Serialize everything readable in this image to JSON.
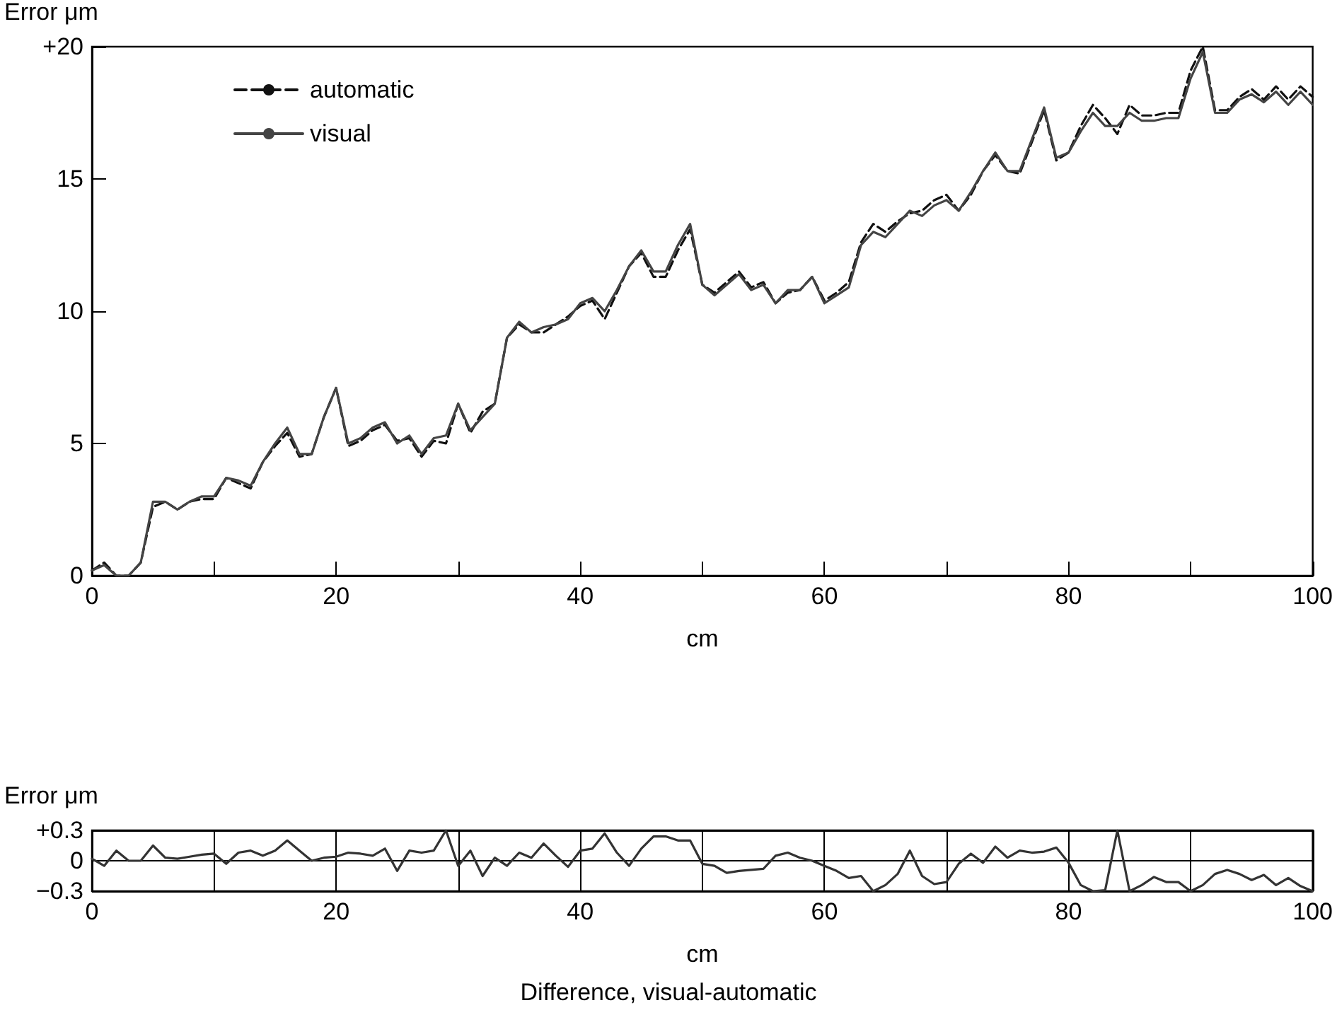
{
  "chart_data": [
    {
      "type": "line",
      "ylabel": "Error μm",
      "xlabel": "cm",
      "xlim": [
        0,
        100
      ],
      "ylim": [
        0,
        20
      ],
      "xticks": [
        0,
        {
          "value": 10,
          "label": null
        },
        20,
        {
          "value": 30,
          "label": null
        },
        40,
        {
          "value": 50,
          "label": null
        },
        60,
        {
          "value": 70,
          "label": null
        },
        80,
        {
          "value": 90,
          "label": null
        },
        100
      ],
      "yticks": [
        0,
        5,
        10,
        15,
        {
          "value": 20,
          "label": "+20"
        }
      ],
      "grid": false,
      "legend": "top left",
      "marker": "none",
      "x": [
        0,
        1,
        2,
        3,
        4,
        5,
        6,
        7,
        8,
        9,
        10,
        11,
        12,
        13,
        14,
        15,
        16,
        17,
        18,
        19,
        20,
        21,
        22,
        23,
        24,
        25,
        26,
        27,
        28,
        29,
        30,
        31,
        32,
        33,
        34,
        35,
        36,
        37,
        38,
        39,
        40,
        41,
        42,
        43,
        44,
        45,
        46,
        47,
        48,
        49,
        50,
        51,
        52,
        53,
        54,
        55,
        56,
        57,
        58,
        59,
        60,
        61,
        62,
        63,
        64,
        65,
        66,
        67,
        68,
        69,
        70,
        71,
        72,
        73,
        74,
        75,
        76,
        77,
        78,
        79,
        80,
        81,
        82,
        83,
        84,
        85,
        86,
        87,
        88,
        89,
        90,
        91,
        92,
        93,
        94,
        95,
        96,
        97,
        98,
        99,
        100
      ],
      "series": [
        {
          "name": "automatic",
          "color": "#111111",
          "line_style": "dashed",
          "values": [
            0.2,
            0.5,
            0,
            0,
            0.5,
            2.6,
            2.8,
            2.5,
            2.8,
            2.9,
            2.9,
            3.7,
            3.5,
            3.3,
            4.3,
            4.9,
            5.4,
            4.5,
            4.6,
            6.0,
            7.1,
            4.9,
            5.1,
            5.5,
            5.7,
            5.1,
            5.2,
            4.5,
            5.1,
            5.0,
            6.5,
            5.4,
            6.2,
            6.5,
            9.0,
            9.5,
            9.2,
            9.2,
            9.5,
            9.8,
            10.2,
            10.4,
            9.7,
            10.7,
            11.7,
            12.2,
            11.3,
            11.3,
            12.3,
            13.1,
            11.0,
            10.7,
            11.1,
            11.5,
            10.9,
            11.1,
            10.3,
            10.7,
            10.8,
            11.3,
            10.4,
            10.7,
            11.1,
            12.6,
            13.3,
            13.0,
            13.4,
            13.7,
            13.8,
            14.2,
            14.4,
            13.8,
            14.4,
            15.3,
            15.9,
            15.3,
            15.2,
            16.4,
            17.6,
            15.7,
            16.0,
            17.0,
            17.8,
            17.3,
            16.7,
            17.8,
            17.4,
            17.4,
            17.5,
            17.5,
            19.1,
            20.0,
            17.6,
            17.6,
            18.1,
            18.4,
            18.0,
            18.5,
            18.0,
            18.5,
            18.1
          ]
        },
        {
          "name": "visual",
          "color": "#444444",
          "line_style": "solid",
          "values": [
            0.2,
            0.4,
            0,
            0,
            0.5,
            2.8,
            2.8,
            2.5,
            2.8,
            3.0,
            3.0,
            3.7,
            3.6,
            3.4,
            4.3,
            5.0,
            5.6,
            4.6,
            4.6,
            6.0,
            7.1,
            5.0,
            5.2,
            5.6,
            5.8,
            5.0,
            5.3,
            4.6,
            5.2,
            5.3,
            6.5,
            5.5,
            6.0,
            6.5,
            9.0,
            9.6,
            9.2,
            9.4,
            9.5,
            9.7,
            10.3,
            10.5,
            10.0,
            10.8,
            11.7,
            12.3,
            11.5,
            11.5,
            12.5,
            13.3,
            11.0,
            10.6,
            11.0,
            11.4,
            10.8,
            11.0,
            10.3,
            10.8,
            10.8,
            11.3,
            10.3,
            10.6,
            10.9,
            12.5,
            13.0,
            12.8,
            13.3,
            13.8,
            13.6,
            14.0,
            14.2,
            13.8,
            14.5,
            15.3,
            16.0,
            15.3,
            15.3,
            16.5,
            17.7,
            15.8,
            16.0,
            16.8,
            17.5,
            17.0,
            17.0,
            17.5,
            17.2,
            17.2,
            17.3,
            17.3,
            18.8,
            19.8,
            17.5,
            17.5,
            18.0,
            18.2,
            17.9,
            18.3,
            17.8,
            18.3,
            17.8
          ]
        }
      ]
    },
    {
      "type": "line",
      "ylabel": "Error μm",
      "xlabel": "cm",
      "xlim": [
        0,
        100
      ],
      "ylim": [
        -0.3,
        0.3
      ],
      "xticks": [
        0,
        {
          "value": 10,
          "label": null
        },
        20,
        {
          "value": 30,
          "label": null
        },
        40,
        {
          "value": 50,
          "label": null
        },
        60,
        {
          "value": 70,
          "label": null
        },
        80,
        {
          "value": 90,
          "label": null
        },
        100
      ],
      "yticks": [
        {
          "value": -0.3,
          "label": "−0.3"
        },
        0,
        {
          "value": 0.3,
          "label": "+0.3"
        }
      ],
      "grid": true,
      "legend": false,
      "marker": "none",
      "line_style": "solid",
      "annotations": [
        "Difference, visual-automatic"
      ],
      "x": [
        0,
        1,
        2,
        3,
        4,
        5,
        6,
        7,
        8,
        9,
        10,
        11,
        12,
        13,
        14,
        15,
        16,
        17,
        18,
        19,
        20,
        21,
        22,
        23,
        24,
        25,
        26,
        27,
        28,
        29,
        30,
        31,
        32,
        33,
        34,
        35,
        36,
        37,
        38,
        39,
        40,
        41,
        42,
        43,
        44,
        45,
        46,
        47,
        48,
        49,
        50,
        51,
        52,
        53,
        54,
        55,
        56,
        57,
        58,
        59,
        60,
        61,
        62,
        63,
        64,
        65,
        66,
        67,
        68,
        69,
        70,
        71,
        72,
        73,
        74,
        75,
        76,
        77,
        78,
        79,
        80,
        81,
        82,
        83,
        84,
        85,
        86,
        87,
        88,
        89,
        90,
        91,
        92,
        93,
        94,
        95,
        96,
        97,
        98,
        99,
        100
      ],
      "series": [
        {
          "color": "#333333",
          "values": [
            0.02,
            -0.05,
            0.1,
            0,
            0,
            0.15,
            0.03,
            0.02,
            0.04,
            0.06,
            0.07,
            -0.03,
            0.08,
            0.1,
            0.05,
            0.1,
            0.2,
            0.1,
            0,
            0.03,
            0.04,
            0.08,
            0.07,
            0.05,
            0.12,
            -0.1,
            0.1,
            0.08,
            0.1,
            0.3,
            -0.05,
            0.1,
            -0.15,
            0.03,
            -0.05,
            0.08,
            0.03,
            0.17,
            0.05,
            -0.06,
            0.1,
            0.12,
            0.27,
            0.08,
            -0.05,
            0.12,
            0.24,
            0.24,
            0.2,
            0.2,
            -0.03,
            -0.05,
            -0.12,
            -0.1,
            -0.09,
            -0.08,
            0.05,
            0.08,
            0.03,
            0,
            -0.05,
            -0.1,
            -0.17,
            -0.15,
            -0.3,
            -0.24,
            -0.13,
            0.1,
            -0.15,
            -0.23,
            -0.21,
            -0.03,
            0.07,
            -0.02,
            0.14,
            0.03,
            0.1,
            0.08,
            0.09,
            0.13,
            -0.02,
            -0.24,
            -0.3,
            -0.29,
            0.3,
            -0.3,
            -0.24,
            -0.16,
            -0.21,
            -0.21,
            -0.3,
            -0.24,
            -0.13,
            -0.09,
            -0.13,
            -0.19,
            -0.14,
            -0.24,
            -0.17,
            -0.25,
            -0.3
          ]
        }
      ]
    }
  ]
}
